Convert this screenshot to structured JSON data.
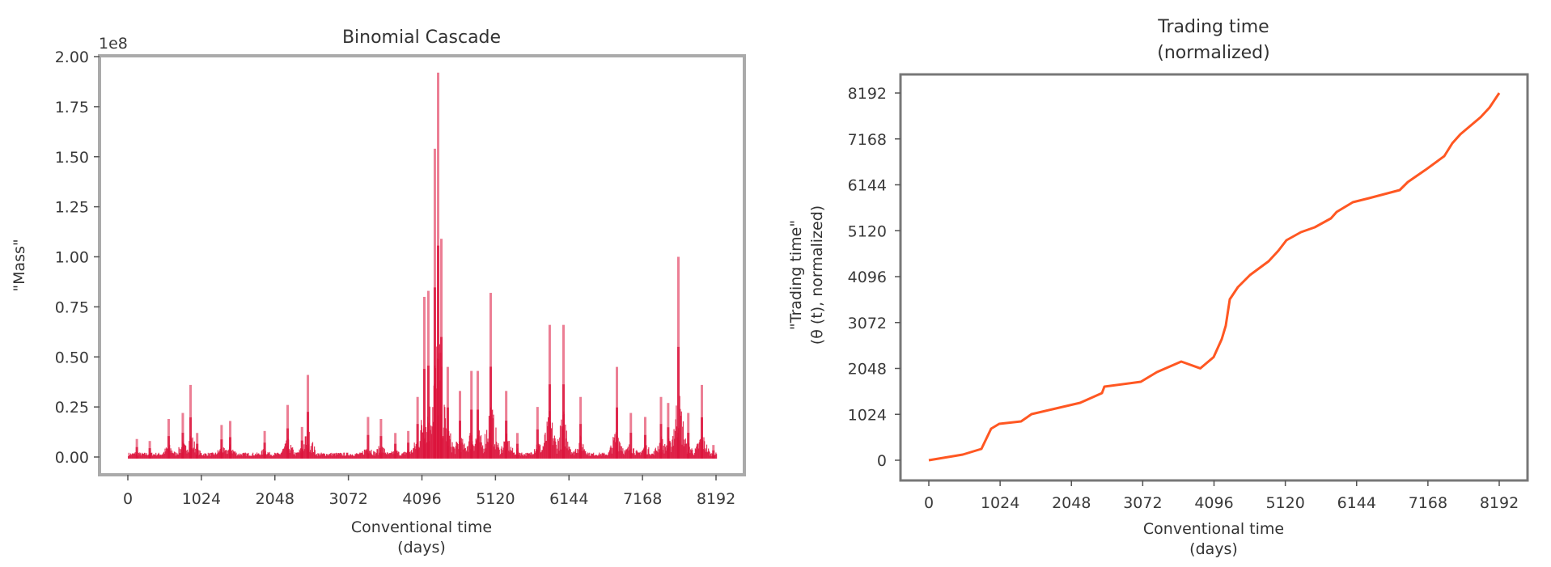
{
  "chart_data": [
    {
      "type": "bar",
      "title": "Binomial Cascade",
      "xlabel": "Conventional time\n(days)",
      "xlabel_lines": [
        "Conventional time",
        "(days)"
      ],
      "ylabel": "\"Mass\"",
      "y_offset_label": "1e8",
      "xlim": [
        -300,
        8500
      ],
      "ylim": [
        -0.1,
        2.0
      ],
      "x_ticks": [
        0,
        1024,
        2048,
        3072,
        4096,
        5120,
        6144,
        7168,
        8192
      ],
      "y_ticks": [
        0.0,
        0.25,
        0.5,
        0.75,
        1.0,
        1.25,
        1.5,
        1.75,
        2.0
      ],
      "y_tick_labels": [
        "0.00",
        "0.25",
        "0.50",
        "0.75",
        "1.00",
        "1.25",
        "1.50",
        "1.75",
        "2.00"
      ],
      "color": "#dc143c",
      "grid": false,
      "x_range_data": [
        0,
        8192
      ],
      "notable_spikes": [
        {
          "x": 120,
          "y": 0.09
        },
        {
          "x": 300,
          "y": 0.08
        },
        {
          "x": 563,
          "y": 0.19
        },
        {
          "x": 760,
          "y": 0.22
        },
        {
          "x": 868,
          "y": 0.36
        },
        {
          "x": 960,
          "y": 0.12
        },
        {
          "x": 1300,
          "y": 0.16
        },
        {
          "x": 1420,
          "y": 0.18
        },
        {
          "x": 1900,
          "y": 0.13
        },
        {
          "x": 2220,
          "y": 0.26
        },
        {
          "x": 2420,
          "y": 0.15
        },
        {
          "x": 2502,
          "y": 0.41
        },
        {
          "x": 3340,
          "y": 0.2
        },
        {
          "x": 3520,
          "y": 0.19
        },
        {
          "x": 3720,
          "y": 0.12
        },
        {
          "x": 3900,
          "y": 0.13
        },
        {
          "x": 4030,
          "y": 0.3
        },
        {
          "x": 4124,
          "y": 0.8
        },
        {
          "x": 4180,
          "y": 0.83
        },
        {
          "x": 4270,
          "y": 1.54
        },
        {
          "x": 4316,
          "y": 1.92
        },
        {
          "x": 4361,
          "y": 1.09
        },
        {
          "x": 4450,
          "y": 0.45
        },
        {
          "x": 4620,
          "y": 0.33
        },
        {
          "x": 4780,
          "y": 0.43
        },
        {
          "x": 4868,
          "y": 0.43
        },
        {
          "x": 5048,
          "y": 0.82
        },
        {
          "x": 5264,
          "y": 0.33
        },
        {
          "x": 5420,
          "y": 0.12
        },
        {
          "x": 5700,
          "y": 0.25
        },
        {
          "x": 5870,
          "y": 0.66
        },
        {
          "x": 6062,
          "y": 0.66
        },
        {
          "x": 6300,
          "y": 0.3
        },
        {
          "x": 6806,
          "y": 0.45
        },
        {
          "x": 7000,
          "y": 0.22
        },
        {
          "x": 7200,
          "y": 0.2
        },
        {
          "x": 7420,
          "y": 0.3
        },
        {
          "x": 7520,
          "y": 0.27
        },
        {
          "x": 7662,
          "y": 1.0
        },
        {
          "x": 7800,
          "y": 0.22
        },
        {
          "x": 7989,
          "y": 0.36
        },
        {
          "x": 8150,
          "y": 0.06
        }
      ]
    },
    {
      "type": "line",
      "title": "Trading time\n(normalized)",
      "title_lines": [
        "Trading time",
        "(normalized)"
      ],
      "xlabel": "Conventional time\n(days)",
      "xlabel_lines": [
        "Conventional time",
        "(days)"
      ],
      "ylabel": "\"Trading time\"\n(θ (t), normalized)",
      "ylabel_lines": [
        "\"Trading time\"",
        "(θ (t), normalized)"
      ],
      "xlim": [
        -400,
        8600
      ],
      "ylim": [
        -400,
        8600
      ],
      "x_ticks": [
        0,
        1024,
        2048,
        3072,
        4096,
        5120,
        6144,
        7168,
        8192
      ],
      "y_ticks": [
        0,
        1024,
        2048,
        3072,
        4096,
        5120,
        6144,
        7168,
        8192
      ],
      "color": "#ff5722",
      "grid": false,
      "series": [
        {
          "name": "trading time",
          "x": [
            0,
            488,
            755,
            895,
            1011,
            1325,
            1476,
            1824,
            2173,
            2487,
            2522,
            3044,
            3277,
            3625,
            3900,
            4090,
            4206,
            4265,
            4323,
            4439,
            4613,
            4880,
            5020,
            5136,
            5345,
            5543,
            5775,
            5857,
            6090,
            6322,
            6763,
            6880,
            7135,
            7403,
            7519,
            7635,
            7925,
            8053,
            8192
          ],
          "y": [
            0,
            126,
            253,
            704,
            812,
            866,
            1028,
            1155,
            1281,
            1498,
            1642,
            1750,
            1967,
            2201,
            2050,
            2300,
            2700,
            3000,
            3591,
            3861,
            4132,
            4439,
            4674,
            4908,
            5088,
            5197,
            5395,
            5540,
            5756,
            5847,
            6027,
            6208,
            6479,
            6785,
            7074,
            7273,
            7652,
            7868,
            8192
          ]
        }
      ]
    }
  ],
  "charts": {
    "left": {
      "title": "Binomial Cascade",
      "offset": "1e8",
      "ylabel": "\"Mass\"",
      "xlabel_line1": "Conventional time",
      "xlabel_line2": "(days)"
    },
    "right": {
      "title_line1": "Trading time",
      "title_line2": "(normalized)",
      "ylabel_line1": "\"Trading time\"",
      "ylabel_line2": "(θ (t), normalized)",
      "xlabel_line1": "Conventional time",
      "xlabel_line2": "(days)"
    }
  }
}
